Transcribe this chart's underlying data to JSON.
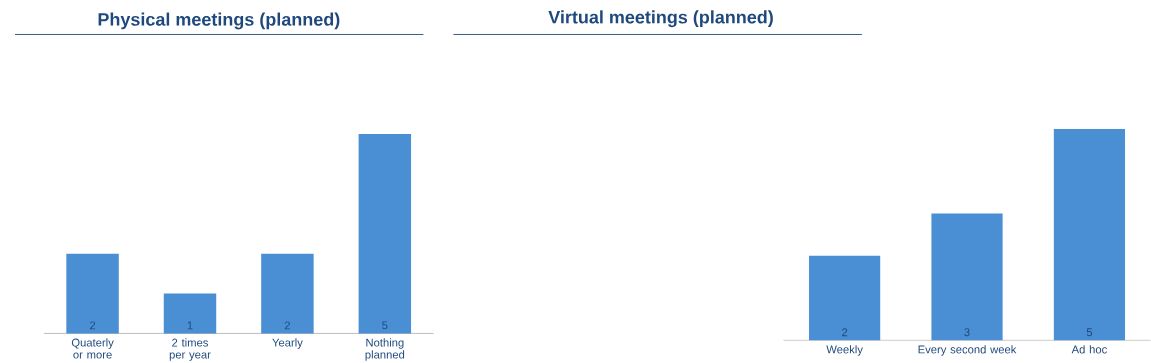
{
  "chart_data": [
    {
      "type": "bar",
      "title": "Physical meetings  (planned)",
      "categories": [
        "Quaterly or more",
        "2 times per year",
        "Yearly",
        "Nothing planned"
      ],
      "values": [
        2,
        1,
        2,
        5
      ],
      "color": "#4a8fd4",
      "data_labels": true
    },
    {
      "type": "bar",
      "title": "Virtual meetings (planned)",
      "categories": [
        "Weekly",
        "Every second week",
        "Ad hoc"
      ],
      "values": [
        2,
        3,
        5
      ],
      "color": "#4a8fd4",
      "data_labels": true
    }
  ]
}
